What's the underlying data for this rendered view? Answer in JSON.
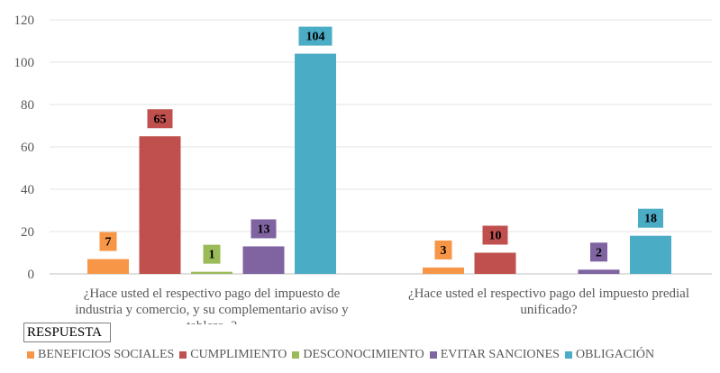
{
  "chart_data": {
    "type": "bar",
    "categories": [
      "¿Hace usted el respectivo pago del impuesto de industria y comercio, y su complementario avisos y tableros?",
      "¿Hace usted el respectivo pago del impuesto predial unificado?"
    ],
    "category_lines": [
      [
        "¿Hace usted el respectivo pago del impuesto de",
        "industria y comercio, y su complementario aviso  y",
        "tablero_?"
      ],
      [
        "¿Hace usted el respectivo pago del impuesto predial",
        "unificado?"
      ]
    ],
    "series": [
      {
        "name": "BENEFICIOS SOCIALES",
        "color": "#F79646",
        "values": [
          7,
          3
        ]
      },
      {
        "name": "CUMPLIMIENTO",
        "color": "#C0504D",
        "values": [
          65,
          10
        ]
      },
      {
        "name": "DESCONOCIMIENTO",
        "color": "#9BBB59",
        "values": [
          1,
          0
        ]
      },
      {
        "name": "EVITAR SANCIONES",
        "color": "#8064A2",
        "values": [
          13,
          2
        ]
      },
      {
        "name": "OBLIGACIÓN",
        "color": "#4BACC6",
        "values": [
          104,
          18
        ]
      }
    ],
    "ylim": [
      0,
      120
    ],
    "yticks": [
      0,
      20,
      40,
      60,
      80,
      100,
      120
    ],
    "grid": true,
    "legend_title": "RESPUESTA",
    "legend_position": "bottom",
    "title": "",
    "xlabel": "",
    "ylabel": ""
  }
}
